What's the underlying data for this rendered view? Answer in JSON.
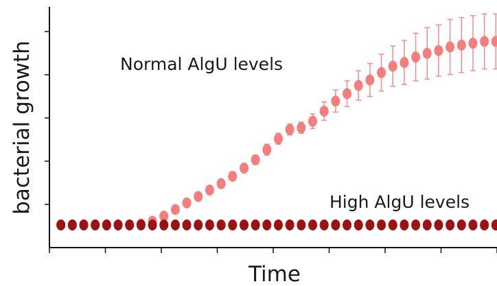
{
  "chart_data": {
    "type": "scatter",
    "title": "",
    "xlabel": "Time",
    "ylabel": "bacterial growth",
    "grid": false,
    "xlim": [
      0,
      40
    ],
    "ylim": [
      0,
      1.05
    ],
    "annotations": [
      {
        "text": "Normal AlgU levels",
        "series": "normal"
      },
      {
        "text": "High AlgU levels",
        "series": "high"
      }
    ],
    "series": [
      {
        "id": "normal",
        "color": "#f47d7d",
        "errorbar_color": "#f08c8c",
        "x": [
          1,
          2,
          3,
          4,
          5,
          6,
          7,
          8,
          9,
          10,
          11,
          12,
          13,
          14,
          15,
          16,
          17,
          18,
          19,
          20,
          21,
          22,
          23,
          24,
          25,
          26,
          27,
          28,
          29,
          30,
          31,
          32,
          33,
          34,
          35,
          36,
          37,
          38,
          39
        ],
        "y": [
          0,
          0,
          0,
          0,
          0,
          0,
          0,
          0.005,
          0.02,
          0.048,
          0.084,
          0.12,
          0.155,
          0.19,
          0.225,
          0.265,
          0.31,
          0.355,
          0.41,
          0.47,
          0.52,
          0.53,
          0.565,
          0.62,
          0.675,
          0.715,
          0.76,
          0.79,
          0.83,
          0.865,
          0.885,
          0.915,
          0.935,
          0.95,
          0.97,
          0.98,
          0.99,
          1.0,
          1.0
        ],
        "err": [
          0,
          0,
          0,
          0,
          0,
          0,
          0,
          0,
          0,
          0,
          0,
          0,
          0,
          0,
          0,
          0,
          0.02,
          0.025,
          0.03,
          0.03,
          0.03,
          0.03,
          0.04,
          0.05,
          0.06,
          0.07,
          0.08,
          0.09,
          0.1,
          0.11,
          0.12,
          0.13,
          0.14,
          0.14,
          0.15,
          0.15,
          0.15,
          0.15,
          0.15
        ]
      },
      {
        "id": "high",
        "color": "#9c1212",
        "x": [
          1,
          2,
          3,
          4,
          5,
          6,
          7,
          8,
          9,
          10,
          11,
          12,
          13,
          14,
          15,
          16,
          17,
          18,
          19,
          20,
          21,
          22,
          23,
          24,
          25,
          26,
          27,
          28,
          29,
          30,
          31,
          32,
          33,
          34,
          35,
          36,
          37,
          38,
          39,
          40
        ],
        "y": [
          0,
          0,
          0,
          0,
          0,
          0,
          0,
          0,
          0,
          0,
          0,
          0,
          0,
          0,
          0,
          0,
          0,
          0,
          0,
          0,
          0,
          0,
          0,
          0,
          0,
          0,
          0,
          0,
          0,
          0,
          0,
          0,
          0,
          0,
          0,
          0,
          0,
          0,
          0,
          0
        ]
      }
    ]
  }
}
